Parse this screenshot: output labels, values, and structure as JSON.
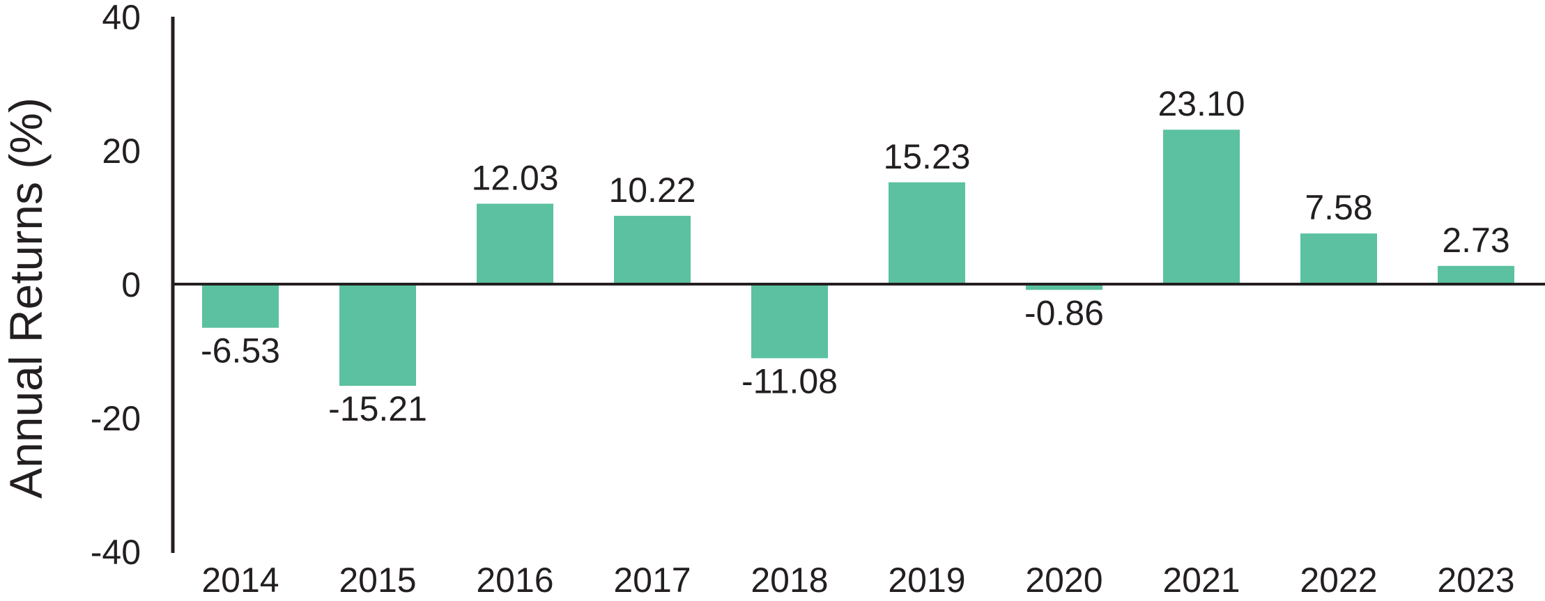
{
  "chart_data": {
    "type": "bar",
    "title": "",
    "xlabel": "",
    "ylabel": "Annual Returns (%)",
    "ylim": [
      -40,
      40
    ],
    "yticks": [
      40,
      20,
      0,
      -20,
      -40
    ],
    "grid": false,
    "legend": "none",
    "categories": [
      "2014",
      "2015",
      "2016",
      "2017",
      "2018",
      "2019",
      "2020",
      "2021",
      "2022",
      "2023"
    ],
    "values": [
      -6.53,
      -15.21,
      12.03,
      10.22,
      -11.08,
      15.23,
      -0.86,
      23.1,
      7.58,
      2.73
    ],
    "value_labels": [
      "-6.53",
      "-15.21",
      "12.03",
      "10.22",
      "-11.08",
      "15.23",
      "-0.86",
      "23.10",
      "7.58",
      "2.73"
    ],
    "bar_color": "#5bc1a0",
    "axis_color": "#231f20"
  }
}
